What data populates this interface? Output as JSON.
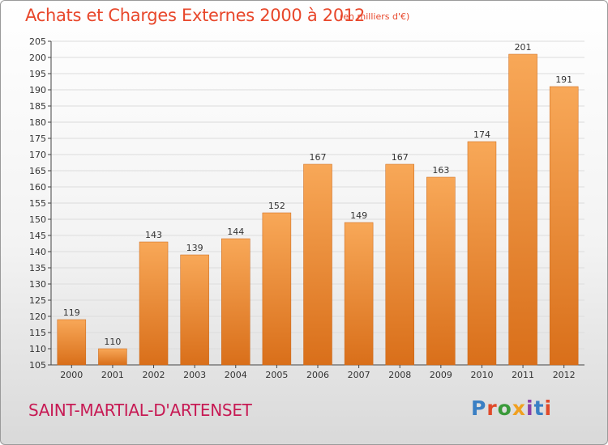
{
  "header": {
    "title": "Achats et Charges Externes 2000 à 2012",
    "subtitle": "(en milliers d'€)"
  },
  "footer": {
    "town": "SAINT-MARTIAL-D'ARTENSET",
    "brand": "Proxiti",
    "brand_letters": [
      {
        "char": "P",
        "color": "#3a7fc4"
      },
      {
        "char": "r",
        "color": "#e04a2a"
      },
      {
        "char": "o",
        "color": "#3a9a3a"
      },
      {
        "char": "x",
        "color": "#f0a020"
      },
      {
        "char": "i",
        "color": "#8a3fa8"
      },
      {
        "char": "t",
        "color": "#3a7fc4"
      },
      {
        "char": "i",
        "color": "#e04a2a"
      }
    ]
  },
  "colors": {
    "bar_top": "#f8a858",
    "bar_bottom": "#d96f1a",
    "axis": "#444444",
    "grid": "#dcdcdc",
    "text": "#333333"
  },
  "chart_data": {
    "type": "bar",
    "categories": [
      "2000",
      "2001",
      "2002",
      "2003",
      "2004",
      "2005",
      "2006",
      "2007",
      "2008",
      "2009",
      "2010",
      "2011",
      "2012"
    ],
    "values": [
      119,
      110,
      143,
      139,
      144,
      152,
      167,
      149,
      167,
      163,
      174,
      201,
      191
    ],
    "ylim": [
      105,
      205
    ],
    "yticks": [
      105,
      110,
      115,
      120,
      125,
      130,
      135,
      140,
      145,
      150,
      155,
      160,
      165,
      170,
      175,
      180,
      185,
      190,
      195,
      200,
      205
    ],
    "grid": true,
    "data_labels": true
  }
}
